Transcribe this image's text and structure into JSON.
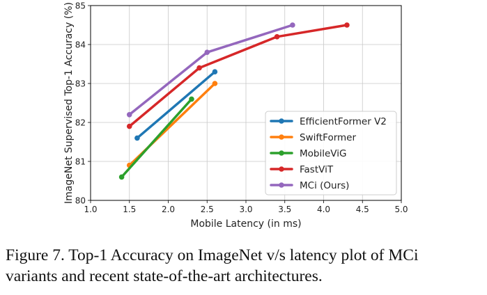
{
  "chart_data": {
    "type": "line",
    "xlabel": "Mobile Latency (in ms)",
    "ylabel": "ImageNet Supervised Top-1 Accuracy (%)",
    "xlim": [
      1.0,
      5.0
    ],
    "ylim": [
      80,
      85
    ],
    "xticks": [
      "1.0",
      "1.5",
      "2.0",
      "2.5",
      "3.0",
      "3.5",
      "4.0",
      "4.5",
      "5.0"
    ],
    "yticks": [
      "80",
      "81",
      "82",
      "83",
      "84",
      "85"
    ],
    "grid": true,
    "legend_position": "lower-right",
    "series": [
      {
        "name": "EfficientFormer V2",
        "color": "#1f77b4",
        "x": [
          1.6,
          2.6
        ],
        "y": [
          81.6,
          83.3
        ]
      },
      {
        "name": "SwiftFormer",
        "color": "#ff7f0e",
        "x": [
          1.5,
          2.6
        ],
        "y": [
          80.9,
          83.0
        ]
      },
      {
        "name": "MobileViG",
        "color": "#2ca02c",
        "x": [
          1.4,
          2.3
        ],
        "y": [
          80.6,
          82.6
        ]
      },
      {
        "name": "FastViT",
        "color": "#d62728",
        "x": [
          1.5,
          2.4,
          3.4,
          4.3
        ],
        "y": [
          81.9,
          83.4,
          84.2,
          84.5
        ]
      },
      {
        "name": "MCi (Ours)",
        "color": "#9467bd",
        "x": [
          1.5,
          2.5,
          3.6
        ],
        "y": [
          82.2,
          83.8,
          84.5
        ]
      }
    ]
  },
  "caption": {
    "line1": "Figure 7.  Top-1 Accuracy on ImageNet v/s latency plot of MCi",
    "line2": "variants and recent state-of-the-art architectures."
  }
}
